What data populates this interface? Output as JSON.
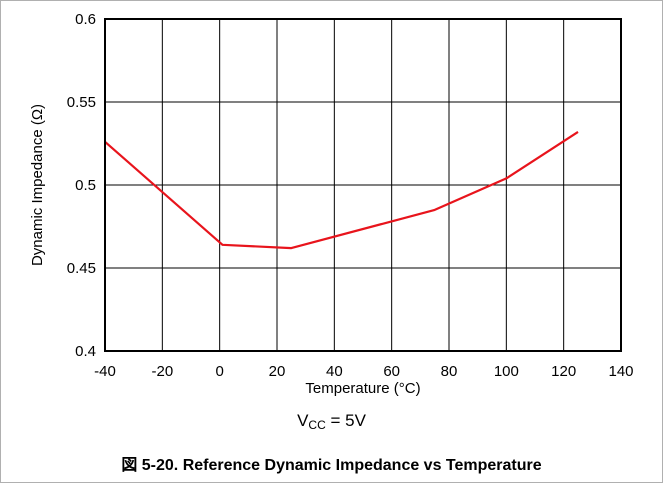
{
  "chart_data": {
    "type": "line",
    "title": "",
    "xlabel": "Temperature (°C)",
    "ylabel": "Dynamic Impedance (Ω)",
    "xlim": [
      -40,
      140
    ],
    "ylim": [
      0.4,
      0.6
    ],
    "xticks": [
      -40,
      -20,
      0,
      20,
      40,
      60,
      80,
      100,
      120,
      140
    ],
    "yticks": [
      0.4,
      0.45,
      0.5,
      0.55,
      0.6
    ],
    "grid": true,
    "series": [
      {
        "color": "#e8141c",
        "x": [
          -40,
          1,
          25,
          75,
          100,
          125
        ],
        "y": [
          0.526,
          0.464,
          0.462,
          0.485,
          0.504,
          0.532
        ]
      }
    ]
  },
  "condition": {
    "symbol": "V",
    "subscript": "CC",
    "rest": " = 5V"
  },
  "caption": "図 5-20. Reference Dynamic Impedance vs Temperature"
}
